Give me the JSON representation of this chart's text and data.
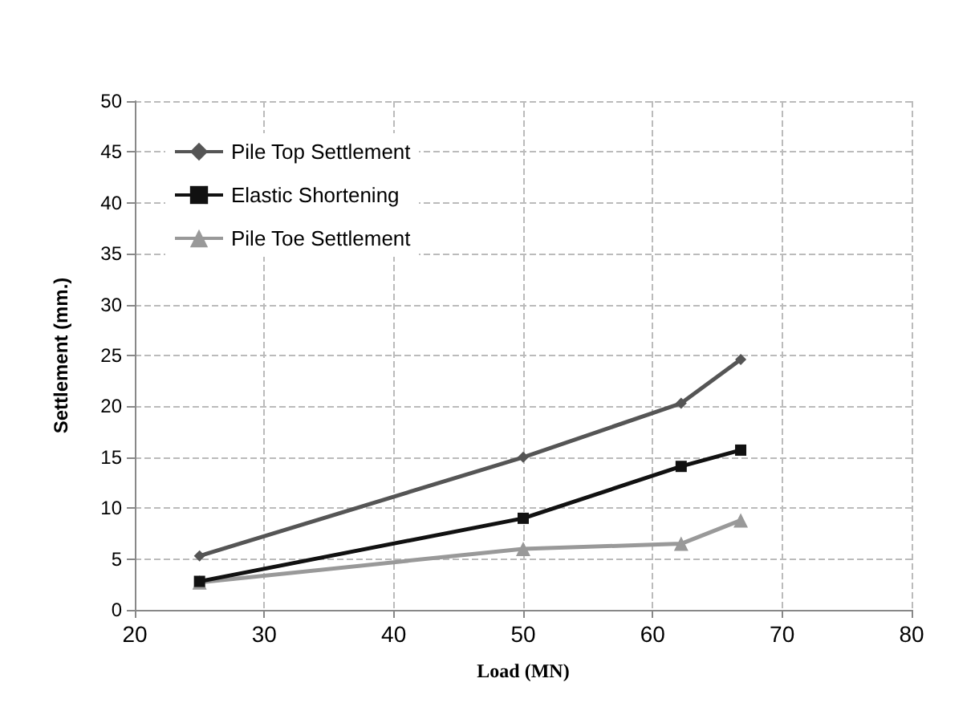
{
  "chart_data": {
    "type": "line",
    "xlabel": "Load (MN)",
    "ylabel": "Settlement (mm.)",
    "x": [
      25,
      50,
      62.2,
      66.8
    ],
    "series": [
      {
        "name": "Pile Top Settlement",
        "color": "#555555",
        "marker": "diamond",
        "values": [
          5.3,
          15,
          20.3,
          24.6
        ]
      },
      {
        "name": "Elastic Shortening",
        "color": "#111111",
        "marker": "square",
        "values": [
          2.8,
          9,
          14.1,
          15.7
        ]
      },
      {
        "name": "Pile Toe Settlement",
        "color": "#999999",
        "marker": "triangle",
        "values": [
          2.7,
          6,
          6.5,
          8.8
        ]
      }
    ],
    "xlim": [
      20,
      80
    ],
    "xticks": [
      20,
      30,
      40,
      50,
      60,
      70,
      80
    ],
    "ylim": [
      0,
      50
    ],
    "yticks": [
      0,
      5,
      10,
      15,
      20,
      25,
      30,
      35,
      40,
      45,
      50
    ],
    "grid": true,
    "legend": "top left",
    "line_style": "solid"
  }
}
